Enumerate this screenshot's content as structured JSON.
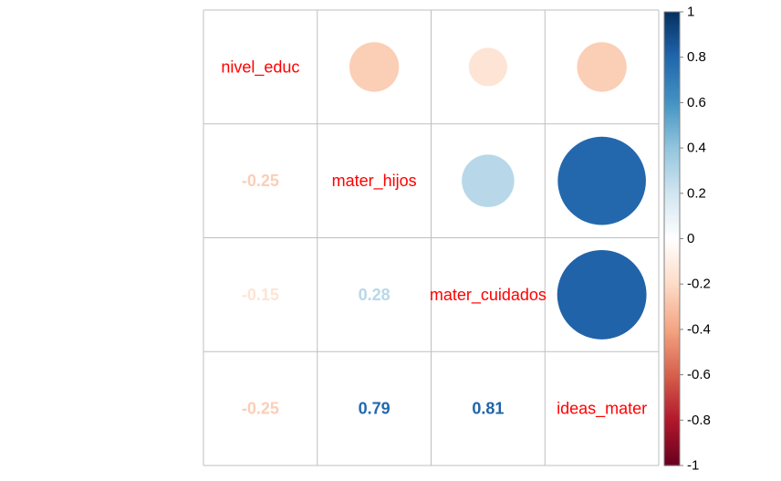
{
  "chart_data": {
    "type": "heatmap",
    "variables": [
      "nivel_educ",
      "mater_hijos",
      "mater_cuidados",
      "ideas_mater"
    ],
    "correlation_matrix": [
      [
        1.0,
        -0.25,
        -0.15,
        -0.25
      ],
      [
        -0.25,
        1.0,
        0.28,
        0.79
      ],
      [
        -0.15,
        0.28,
        1.0,
        0.81
      ],
      [
        -0.25,
        0.79,
        0.81,
        1.0
      ]
    ],
    "lower_triangle_labels": [
      {
        "row": 1,
        "col": 0,
        "text": "-0.25"
      },
      {
        "row": 2,
        "col": 0,
        "text": "-0.15"
      },
      {
        "row": 2,
        "col": 1,
        "text": "0.28"
      },
      {
        "row": 3,
        "col": 0,
        "text": "-0.25"
      },
      {
        "row": 3,
        "col": 1,
        "text": "0.79"
      },
      {
        "row": 3,
        "col": 2,
        "text": "0.81"
      }
    ],
    "upper_triangle_style": "circle",
    "diagonal_label_color": "#ff0000",
    "colorbar": {
      "range": [
        -1,
        1
      ],
      "ticks": [
        "1",
        "0.8",
        "0.6",
        "0.4",
        "0.2",
        "0",
        "-0.2",
        "-0.4",
        "-0.6",
        "-0.8",
        "-1"
      ],
      "placement": "right"
    },
    "palette": [
      "#67001F",
      "#B2182B",
      "#D6604D",
      "#F4A582",
      "#FDDBC7",
      "#FFFFFF",
      "#D1E5F0",
      "#92C5DE",
      "#4393C3",
      "#2166AC",
      "#053061"
    ],
    "grid": true,
    "title": "",
    "xlabel": "",
    "ylabel": ""
  }
}
